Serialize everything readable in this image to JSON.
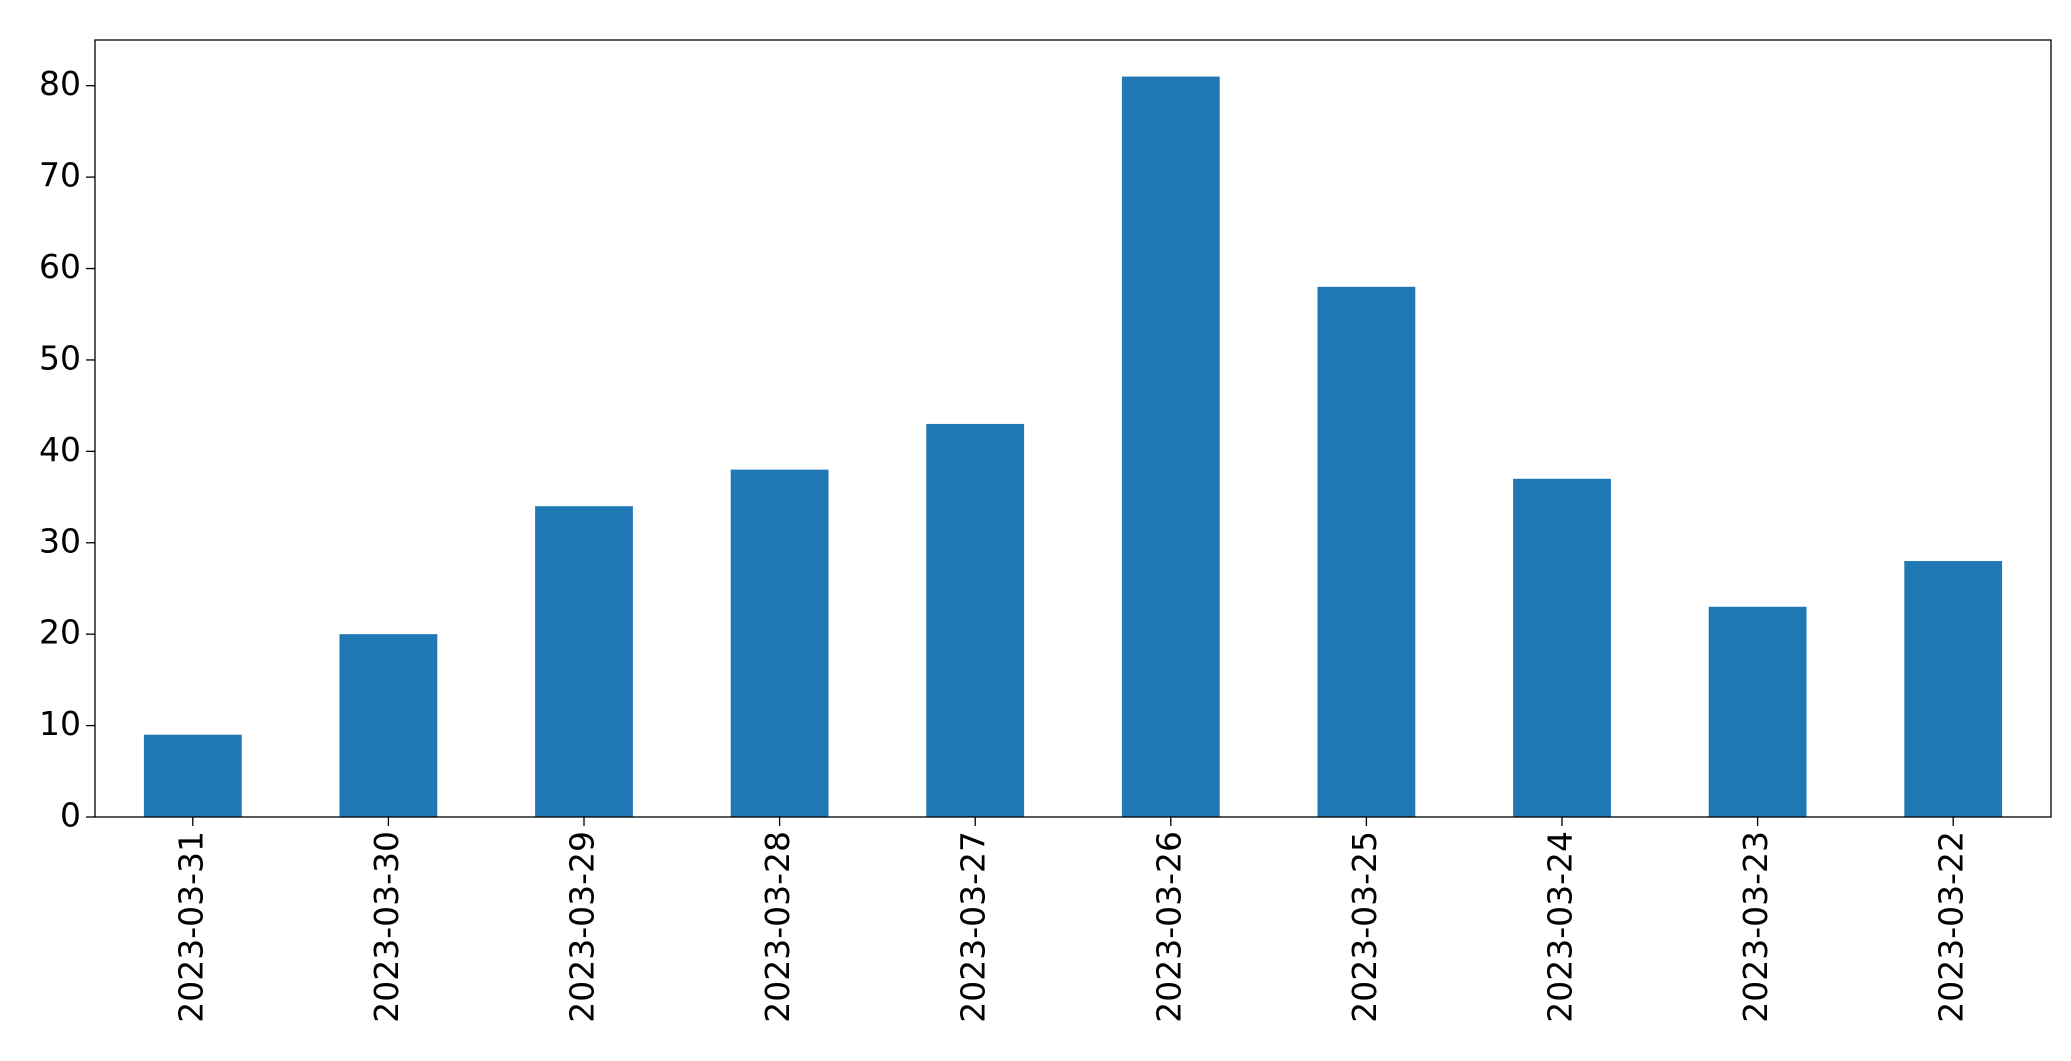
{
  "chart_data": {
    "type": "bar",
    "categories": [
      "2023-03-31",
      "2023-03-30",
      "2023-03-29",
      "2023-03-28",
      "2023-03-27",
      "2023-03-26",
      "2023-03-25",
      "2023-03-24",
      "2023-03-23",
      "2023-03-22"
    ],
    "values": [
      9,
      20,
      34,
      38,
      43,
      81,
      58,
      37,
      23,
      28
    ],
    "color": "#1f77b4",
    "ylim": [
      0,
      85
    ],
    "yticks": [
      0,
      10,
      20,
      30,
      40,
      50,
      60,
      70,
      80
    ],
    "grid": false
  }
}
